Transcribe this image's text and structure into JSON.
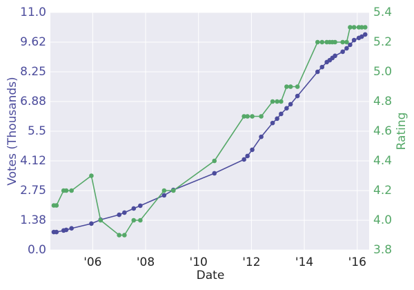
{
  "chart_data": {
    "type": "line",
    "xlabel": "Date",
    "ylabel": "Votes (Thousands)",
    "y2label": "Rating",
    "x": [
      2004.53,
      2004.63,
      2004.9,
      2005.0,
      2005.2,
      2005.95,
      2006.3,
      2007.0,
      2007.2,
      2007.55,
      2007.8,
      2008.7,
      2009.05,
      2010.6,
      2011.72,
      2011.85,
      2012.03,
      2012.37,
      2012.8,
      2012.97,
      2013.12,
      2013.33,
      2013.48,
      2013.74,
      2014.5,
      2014.67,
      2014.85,
      2014.96,
      2015.06,
      2015.16,
      2015.45,
      2015.6,
      2015.73,
      2015.88,
      2016.06,
      2016.17,
      2016.3
    ],
    "series": [
      {
        "color": "#4c4c9c",
        "axis": "y",
        "values": [
          0.83,
          0.83,
          0.9,
          0.93,
          1.0,
          1.22,
          1.4,
          1.63,
          1.73,
          1.92,
          2.05,
          2.53,
          2.78,
          3.55,
          4.19,
          4.35,
          4.64,
          5.24,
          5.88,
          6.08,
          6.3,
          6.56,
          6.75,
          7.13,
          8.25,
          8.47,
          8.7,
          8.79,
          8.89,
          8.99,
          9.18,
          9.34,
          9.5,
          9.72,
          9.82,
          9.88,
          9.98
        ]
      },
      {
        "color": "#55a868",
        "axis": "y2",
        "values": [
          4.1,
          4.1,
          4.2,
          4.2,
          4.2,
          4.3,
          4.0,
          3.9,
          3.9,
          4.0,
          4.0,
          4.2,
          4.2,
          4.4,
          4.7,
          4.7,
          4.7,
          4.7,
          4.8,
          4.8,
          4.8,
          4.9,
          4.9,
          4.9,
          5.2,
          5.2,
          5.2,
          5.2,
          5.2,
          5.2,
          5.2,
          5.2,
          5.3,
          5.3,
          5.3,
          5.3,
          5.3
        ]
      }
    ],
    "xlim": [
      2004.4,
      2016.45
    ],
    "xticks": [
      {
        "value": 2006,
        "label": "'06"
      },
      {
        "value": 2008,
        "label": "'08"
      },
      {
        "value": 2010,
        "label": "'10"
      },
      {
        "value": 2012,
        "label": "'12"
      },
      {
        "value": 2014,
        "label": "'14"
      },
      {
        "value": 2016,
        "label": "'16"
      }
    ],
    "ylim": [
      0,
      11
    ],
    "yticks": [
      {
        "value": 0,
        "label": "0.0"
      },
      {
        "value": 1.375,
        "label": "1.38"
      },
      2.75,
      {
        "value": 4.125,
        "label": "4.12"
      },
      5.5,
      {
        "value": 6.875,
        "label": "6.88"
      },
      8.25,
      {
        "value": 9.625,
        "label": "9.62"
      },
      {
        "value": 11,
        "label": "11.0"
      }
    ],
    "y2lim": [
      3.8,
      5.4
    ],
    "y2ticks": [
      3.8,
      {
        "value": 4.0,
        "label": "4.0"
      },
      4.2,
      4.4,
      4.6,
      4.8,
      {
        "value": 5.0,
        "label": "5.0"
      },
      5.2,
      5.4
    ],
    "grid": true,
    "background": "#eaeaf2"
  }
}
